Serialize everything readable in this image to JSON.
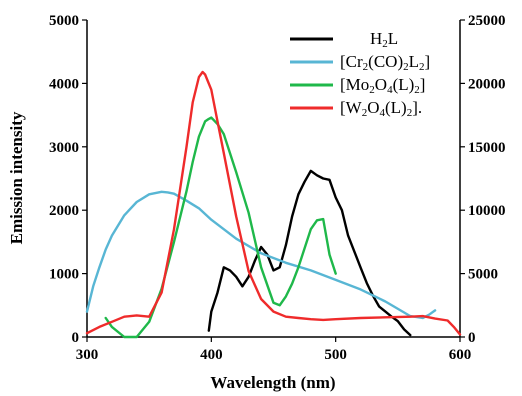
{
  "chart_data": {
    "type": "line",
    "xlabel": "Wavelength (nm)",
    "ylabel": "Emission intensity",
    "xlim": [
      300,
      600
    ],
    "ylim_left": [
      0,
      5000
    ],
    "ylim_right": [
      0,
      25000
    ],
    "x_ticks": [
      "300",
      "400",
      "500",
      "600"
    ],
    "y_ticks_left": [
      "0",
      "1000",
      "2000",
      "3000",
      "4000",
      "5000"
    ],
    "y_ticks_right": [
      "0",
      "5000",
      "10000",
      "15000",
      "20000",
      "25000"
    ],
    "grid": false,
    "legend_position": "top-right",
    "legend": [
      {
        "name": "H",
        "sub": "2",
        "name2": "L",
        "color": "#000000"
      },
      {
        "name": "[Cr",
        "sub": "2",
        "name2": "(CO)",
        "sub2": "2",
        "name3": "L",
        "sub3": "2",
        "name4": "]",
        "color": "#58b6d4"
      },
      {
        "name": "[Mo",
        "sub": "2",
        "name2": "O",
        "sub2": "4",
        "name3": "(L)",
        "sub3": "2",
        "name4": "]",
        "color": "#1fb84a"
      },
      {
        "name": "[W",
        "sub": "2",
        "name2": "O",
        "sub2": "4",
        "name3": "(L)",
        "sub3": "2",
        "name4": "].",
        "color": "#ef2b2b"
      }
    ],
    "series": [
      {
        "key": "h2l",
        "axis": "left",
        "color": "#000000",
        "x": [
          398,
          400,
          405,
          410,
          415,
          420,
          425,
          430,
          435,
          440,
          445,
          450,
          455,
          460,
          465,
          470,
          475,
          480,
          485,
          490,
          495,
          500,
          505,
          510,
          515,
          520,
          525,
          530,
          535,
          540,
          545,
          550,
          555,
          560
        ],
        "y": [
          100,
          400,
          700,
          1100,
          1050,
          950,
          800,
          950,
          1200,
          1420,
          1300,
          1050,
          1100,
          1450,
          1900,
          2250,
          2450,
          2620,
          2550,
          2500,
          2480,
          2200,
          2000,
          1600,
          1350,
          1100,
          850,
          650,
          480,
          400,
          320,
          250,
          120,
          30
        ]
      },
      {
        "key": "cr",
        "axis": "left",
        "color": "#58b6d4",
        "x": [
          300,
          305,
          310,
          315,
          320,
          330,
          340,
          350,
          360,
          365,
          370,
          380,
          390,
          400,
          420,
          440,
          460,
          480,
          500,
          520,
          540,
          560,
          570,
          575,
          580
        ],
        "y": [
          400,
          800,
          1100,
          1380,
          1600,
          1920,
          2130,
          2250,
          2290,
          2280,
          2260,
          2150,
          2030,
          1850,
          1550,
          1320,
          1170,
          1050,
          900,
          750,
          560,
          330,
          300,
          350,
          420
        ]
      },
      {
        "key": "mo",
        "axis": "right",
        "color": "#1fb84a",
        "x": [
          315,
          320,
          330,
          340,
          350,
          360,
          370,
          380,
          385,
          390,
          395,
          398,
          400,
          405,
          410,
          420,
          430,
          440,
          450,
          455,
          460,
          465,
          470,
          475,
          480,
          485,
          490,
          495,
          500
        ],
        "y": [
          1500,
          800,
          0,
          0,
          1200,
          3800,
          7500,
          11500,
          13800,
          15800,
          17000,
          17200,
          17300,
          16800,
          16000,
          13000,
          9800,
          5500,
          2700,
          2500,
          3200,
          4200,
          5500,
          7000,
          8500,
          9200,
          9300,
          6500,
          5000
        ]
      },
      {
        "key": "w",
        "axis": "right",
        "color": "#ef2b2b",
        "x": [
          300,
          310,
          320,
          330,
          340,
          350,
          360,
          370,
          380,
          385,
          390,
          393,
          395,
          400,
          405,
          410,
          420,
          430,
          440,
          450,
          460,
          470,
          480,
          490,
          500,
          520,
          540,
          560,
          570,
          580,
          590,
          595,
          600
        ],
        "y": [
          300,
          800,
          1200,
          1600,
          1700,
          1600,
          3500,
          8500,
          15000,
          18500,
          20500,
          20900,
          20700,
          19500,
          17000,
          14500,
          9500,
          5200,
          3000,
          2000,
          1600,
          1500,
          1400,
          1350,
          1400,
          1500,
          1550,
          1600,
          1650,
          1450,
          1300,
          800,
          200
        ]
      }
    ]
  }
}
